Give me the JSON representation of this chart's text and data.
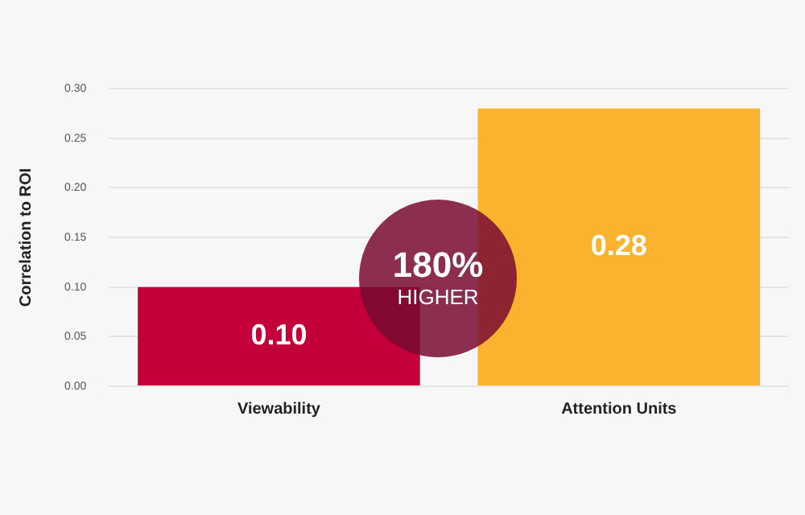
{
  "chart_data": {
    "type": "bar",
    "ylabel": "Correlation to ROI",
    "categories": [
      "Viewability",
      "Attention Units"
    ],
    "values": [
      0.1,
      0.28
    ],
    "colors": [
      "#c4003a",
      "#fbb32f"
    ],
    "value_labels": [
      "0.10",
      "0.28"
    ],
    "ylim": [
      0,
      0.3
    ],
    "yticks": [
      {
        "value": 0,
        "label": "0.00"
      },
      {
        "value": 0.05,
        "label": "0.05"
      },
      {
        "value": 0.1,
        "label": "0.10"
      },
      {
        "value": 0.15,
        "label": "0.15"
      },
      {
        "value": 0.2,
        "label": "0.20"
      },
      {
        "value": 0.25,
        "label": "0.25"
      },
      {
        "value": 0.3,
        "label": "0.30"
      }
    ],
    "grid": "y",
    "legend": false,
    "annotations": [
      "180%",
      "HIGHER"
    ]
  }
}
